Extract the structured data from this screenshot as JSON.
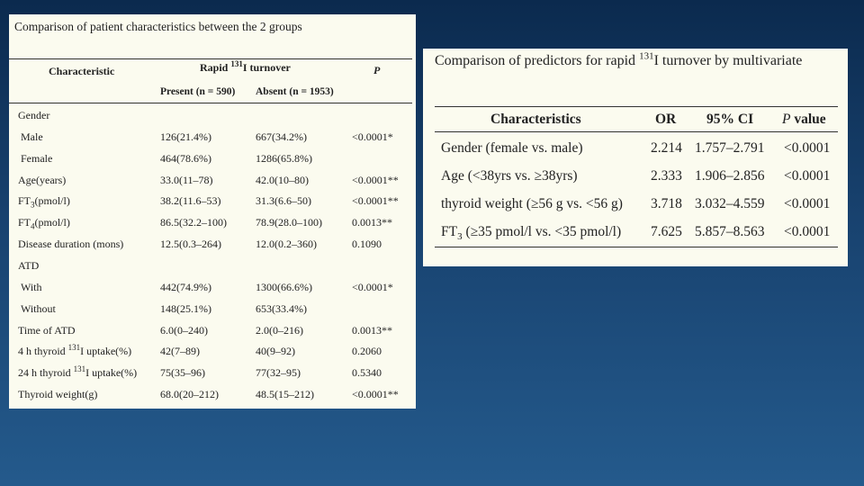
{
  "left_table": {
    "title": "Comparison of patient characteristics between the 2 groups",
    "headers": {
      "characteristic": "Characteristic",
      "rapid_prefix": "Rapid ",
      "rapid_isotope": "131",
      "rapid_suffix": "I turnover",
      "p": "P",
      "present": "Present (n = 590)",
      "absent": "Absent (n = 1953)"
    },
    "rows": [
      {
        "label": "Gender",
        "present": "",
        "absent": "",
        "p": ""
      },
      {
        "label": "Male",
        "present": "126(21.4%)",
        "absent": "667(34.2%)",
        "p": "<0.0001*"
      },
      {
        "label": "Female",
        "present": "464(78.6%)",
        "absent": "1286(65.8%)",
        "p": ""
      },
      {
        "label": "Age(years)",
        "present": "33.0(11–78)",
        "absent": "42.0(10–80)",
        "p": "<0.0001**"
      },
      {
        "label_a": "FT",
        "label_sub": "3",
        "label_b": "(pmol/l)",
        "present": "38.2(11.6–53)",
        "absent": "31.3(6.6–50)",
        "p": "<0.0001**"
      },
      {
        "label_a": "FT",
        "label_sub": "4",
        "label_b": "(pmol/l)",
        "present": "86.5(32.2–100)",
        "absent": "78.9(28.0–100)",
        "p": "0.0013**"
      },
      {
        "label": "Disease duration (mons)",
        "present": "12.5(0.3–264)",
        "absent": "12.0(0.2–360)",
        "p": "0.1090"
      },
      {
        "label": "ATD",
        "present": "",
        "absent": "",
        "p": ""
      },
      {
        "label": "With",
        "present": "442(74.9%)",
        "absent": "1300(66.6%)",
        "p": "<0.0001*"
      },
      {
        "label": "Without",
        "present": "148(25.1%)",
        "absent": "653(33.4%)",
        "p": ""
      },
      {
        "label": "Time of ATD",
        "present": "6.0(0–240)",
        "absent": "2.0(0–216)",
        "p": "0.0013**"
      },
      {
        "label_a": "4 h thyroid ",
        "label_sup": "131",
        "label_b": "I uptake(%)",
        "present": "42(7–89)",
        "absent": "40(9–92)",
        "p": "0.2060"
      },
      {
        "label_a": "24 h thyroid ",
        "label_sup": "131",
        "label_b": "I uptake(%)",
        "present": "75(35–96)",
        "absent": "77(32–95)",
        "p": "0.5340"
      },
      {
        "label": "Thyroid weight(g)",
        "present": "68.0(20–212)",
        "absent": "48.5(15–212)",
        "p": "<0.0001**"
      }
    ]
  },
  "right_table": {
    "title_prefix": "Comparison of predictors for rapid ",
    "title_isotope": "131",
    "title_suffix": "I turnover by multivariate",
    "headers": {
      "characteristics": "Characteristics",
      "or": "OR",
      "ci": "95% CI",
      "p_italic": "P",
      "p_rest": " value"
    },
    "rows": [
      {
        "label": "Gender (female vs. male)",
        "or": "2.214",
        "ci": "1.757–2.791",
        "p": "<0.0001"
      },
      {
        "label": "Age (<38yrs vs. ≥38yrs)",
        "or": "2.333",
        "ci": "1.906–2.856",
        "p": "<0.0001"
      },
      {
        "label": "thyroid weight (≥56 g vs. <56 g)",
        "or": "3.718",
        "ci": "3.032–4.559",
        "p": "<0.0001"
      },
      {
        "label_a": "FT",
        "label_sub": "3",
        "label_b": " (≥35 pmol/l vs. <35 pmol/l)",
        "or": "7.625",
        "ci": "5.857–8.563",
        "p": "<0.0001"
      }
    ]
  }
}
